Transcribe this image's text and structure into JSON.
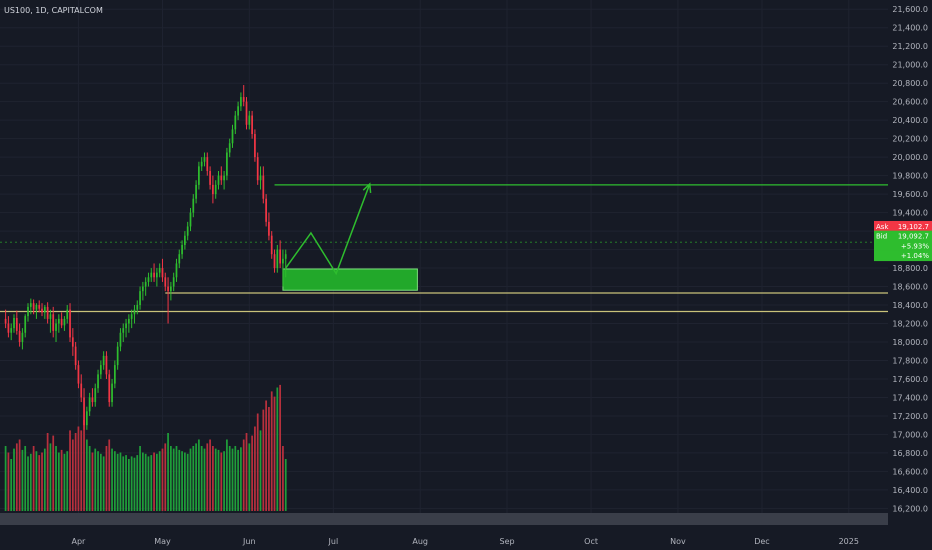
{
  "symbol_label": "US100, 1D, CAPITALCOM",
  "chart_data": {
    "type": "candlestick",
    "y_ticks": [
      16200,
      16400,
      16600,
      16800,
      17000,
      17200,
      17400,
      17600,
      17800,
      18000,
      18200,
      18400,
      18600,
      18800,
      19000,
      19200,
      19400,
      19600,
      19800,
      20000,
      20200,
      20400,
      20600,
      20800,
      21000,
      21200,
      21400,
      21600
    ],
    "y_tick_labels": [
      "16,200.0",
      "16,400.0",
      "16,600.0",
      "16,800.0",
      "17,000.0",
      "17,200.0",
      "17,400.0",
      "17,600.0",
      "17,800.0",
      "18,000.0",
      "18,200.0",
      "18,400.0",
      "18,600.0",
      "18,800.0",
      "19,000.0",
      "19,200.0",
      "19,400.0",
      "19,600.0",
      "19,800.0",
      "20,000.0",
      "20,200.0",
      "20,400.0",
      "20,600.0",
      "20,800.0",
      "21,000.0",
      "21,200.0",
      "21,400.0",
      "21,600.0"
    ],
    "ylim": [
      16150,
      21700
    ],
    "x_ticks": [
      "Apr",
      "May",
      "Jun",
      "Jul",
      "Aug",
      "Sep",
      "Oct",
      "Nov",
      "Dec",
      "2025"
    ],
    "x_tick_days": [
      -4,
      26,
      57,
      87,
      118,
      149,
      179,
      210,
      240,
      271
    ],
    "xlim": [
      -32,
      285
    ],
    "candles": [
      [
        -30,
        18250,
        18350,
        18150,
        18200
      ],
      [
        -29,
        18200,
        18280,
        18050,
        18100
      ],
      [
        -28,
        18100,
        18200,
        18020,
        18150
      ],
      [
        -27,
        18150,
        18300,
        18100,
        18260
      ],
      [
        -26,
        18260,
        18340,
        18080,
        18120
      ],
      [
        -25,
        18120,
        18200,
        17950,
        18000
      ],
      [
        -24,
        18000,
        18150,
        17920,
        18100
      ],
      [
        -23,
        18100,
        18300,
        18050,
        18280
      ],
      [
        -22,
        18280,
        18420,
        18220,
        18380
      ],
      [
        -21,
        18380,
        18470,
        18300,
        18420
      ],
      [
        -20,
        18420,
        18460,
        18300,
        18350
      ],
      [
        -19,
        18350,
        18420,
        18250,
        18400
      ],
      [
        -18,
        18400,
        18450,
        18320,
        18360
      ],
      [
        -17,
        18360,
        18420,
        18280,
        18320
      ],
      [
        -16,
        18320,
        18400,
        18250,
        18380
      ],
      [
        -15,
        18380,
        18430,
        18200,
        18250
      ],
      [
        -14,
        18250,
        18350,
        18100,
        18300
      ],
      [
        -13,
        18300,
        18380,
        18050,
        18120
      ],
      [
        -12,
        18120,
        18250,
        18000,
        18200
      ],
      [
        -11,
        18200,
        18300,
        18100,
        18250
      ],
      [
        -10,
        18250,
        18320,
        18150,
        18180
      ],
      [
        -9,
        18180,
        18280,
        18120,
        18250
      ],
      [
        -8,
        18250,
        18400,
        18200,
        18350
      ],
      [
        -7,
        18350,
        18420,
        18000,
        18050
      ],
      [
        -6,
        18050,
        18150,
        17850,
        17950
      ],
      [
        -5,
        17950,
        18000,
        17700,
        17750
      ],
      [
        -4,
        17750,
        17800,
        17500,
        17550
      ],
      [
        -3,
        17550,
        17650,
        17350,
        17400
      ],
      [
        -2,
        17400,
        17500,
        17050,
        17100
      ],
      [
        -1,
        17100,
        17300,
        17050,
        17250
      ],
      [
        0,
        17250,
        17450,
        17200,
        17400
      ],
      [
        1,
        17400,
        17500,
        17300,
        17350
      ],
      [
        2,
        17350,
        17550,
        17300,
        17500
      ],
      [
        3,
        17500,
        17700,
        17450,
        17650
      ],
      [
        4,
        17650,
        17800,
        17600,
        17750
      ],
      [
        5,
        17750,
        17900,
        17700,
        17850
      ],
      [
        6,
        17850,
        17900,
        17600,
        17650
      ],
      [
        7,
        17650,
        17700,
        17300,
        17350
      ],
      [
        8,
        17350,
        17600,
        17300,
        17550
      ],
      [
        9,
        17550,
        17800,
        17500,
        17750
      ],
      [
        10,
        17750,
        18000,
        17700,
        17950
      ],
      [
        11,
        17950,
        18150,
        17900,
        18100
      ],
      [
        12,
        18100,
        18200,
        18000,
        18150
      ],
      [
        13,
        18150,
        18250,
        18050,
        18200
      ],
      [
        14,
        18200,
        18300,
        18100,
        18250
      ],
      [
        15,
        18250,
        18350,
        18150,
        18300
      ],
      [
        16,
        18300,
        18400,
        18200,
        18350
      ],
      [
        17,
        18350,
        18450,
        18300,
        18400
      ],
      [
        18,
        18400,
        18600,
        18350,
        18550
      ],
      [
        19,
        18550,
        18650,
        18450,
        18600
      ],
      [
        20,
        18600,
        18700,
        18500,
        18650
      ],
      [
        21,
        18650,
        18750,
        18600,
        18700
      ],
      [
        22,
        18700,
        18800,
        18650,
        18750
      ],
      [
        23,
        18750,
        18850,
        18650,
        18700
      ],
      [
        24,
        18700,
        18800,
        18600,
        18750
      ],
      [
        25,
        18750,
        18850,
        18700,
        18800
      ],
      [
        26,
        18800,
        18900,
        18650,
        18700
      ],
      [
        27,
        18700,
        18750,
        18550,
        18600
      ],
      [
        28,
        18600,
        18700,
        18200,
        18550
      ],
      [
        29,
        18550,
        18650,
        18450,
        18600
      ],
      [
        30,
        18600,
        18750,
        18550,
        18700
      ],
      [
        31,
        18700,
        18900,
        18650,
        18850
      ],
      [
        32,
        18850,
        19000,
        18800,
        18950
      ],
      [
        33,
        18950,
        19100,
        18900,
        19050
      ],
      [
        34,
        19050,
        19200,
        19000,
        19150
      ],
      [
        35,
        19150,
        19300,
        19100,
        19250
      ],
      [
        36,
        19250,
        19450,
        19200,
        19400
      ],
      [
        37,
        19400,
        19600,
        19350,
        19550
      ],
      [
        38,
        19550,
        19750,
        19500,
        19700
      ],
      [
        39,
        19700,
        19950,
        19650,
        19900
      ],
      [
        40,
        19900,
        20000,
        19850,
        19950
      ],
      [
        41,
        19950,
        20050,
        19900,
        20000
      ],
      [
        42,
        20000,
        20050,
        19800,
        19850
      ],
      [
        43,
        19850,
        19900,
        19650,
        19700
      ],
      [
        44,
        19700,
        19800,
        19500,
        19600
      ],
      [
        45,
        19600,
        19750,
        19550,
        19700
      ],
      [
        46,
        19700,
        19850,
        19650,
        19800
      ],
      [
        47,
        19800,
        19900,
        19700,
        19750
      ],
      [
        48,
        19750,
        19850,
        19650,
        19800
      ],
      [
        49,
        19800,
        20100,
        19750,
        20050
      ],
      [
        50,
        20050,
        20200,
        20000,
        20150
      ],
      [
        51,
        20150,
        20350,
        20100,
        20300
      ],
      [
        52,
        20300,
        20500,
        20250,
        20450
      ],
      [
        53,
        20450,
        20600,
        20400,
        20550
      ],
      [
        54,
        20550,
        20700,
        20500,
        20650
      ],
      [
        55,
        20650,
        20780,
        20550,
        20600
      ],
      [
        56,
        20600,
        20650,
        20300,
        20350
      ],
      [
        57,
        20350,
        20500,
        20300,
        20450
      ],
      [
        58,
        20450,
        20500,
        20200,
        20250
      ],
      [
        59,
        20250,
        20300,
        19950,
        20000
      ],
      [
        60,
        20000,
        20050,
        19700,
        19750
      ],
      [
        61,
        19750,
        19900,
        19650,
        19800
      ],
      [
        62,
        19800,
        19900,
        19500,
        19550
      ],
      [
        63,
        19550,
        19600,
        19250,
        19300
      ],
      [
        64,
        19300,
        19400,
        19100,
        19150
      ],
      [
        65,
        19150,
        19200,
        18900,
        18950
      ],
      [
        66,
        18950,
        19000,
        18750,
        18800
      ],
      [
        67,
        18800,
        19050,
        18750,
        19000
      ],
      [
        68,
        19000,
        19100,
        18800,
        18850
      ],
      [
        69,
        18850,
        19000,
        18600,
        18900
      ],
      [
        70,
        18900,
        19000,
        18700,
        18950
      ]
    ],
    "volume_bars": [
      [
        -30,
        0.5,
        "up"
      ],
      [
        -29,
        0.45,
        "dn"
      ],
      [
        -28,
        0.4,
        "up"
      ],
      [
        -27,
        0.48,
        "up"
      ],
      [
        -26,
        0.52,
        "dn"
      ],
      [
        -25,
        0.55,
        "dn"
      ],
      [
        -24,
        0.47,
        "up"
      ],
      [
        -23,
        0.5,
        "up"
      ],
      [
        -22,
        0.42,
        "up"
      ],
      [
        -21,
        0.44,
        "up"
      ],
      [
        -20,
        0.5,
        "dn"
      ],
      [
        -19,
        0.46,
        "up"
      ],
      [
        -18,
        0.43,
        "dn"
      ],
      [
        -17,
        0.45,
        "dn"
      ],
      [
        -16,
        0.48,
        "up"
      ],
      [
        -15,
        0.6,
        "dn"
      ],
      [
        -14,
        0.52,
        "up"
      ],
      [
        -13,
        0.58,
        "dn"
      ],
      [
        -12,
        0.5,
        "up"
      ],
      [
        -11,
        0.45,
        "up"
      ],
      [
        -10,
        0.47,
        "dn"
      ],
      [
        -9,
        0.44,
        "up"
      ],
      [
        -8,
        0.46,
        "up"
      ],
      [
        -7,
        0.62,
        "dn"
      ],
      [
        -6,
        0.55,
        "dn"
      ],
      [
        -5,
        0.6,
        "dn"
      ],
      [
        -4,
        0.65,
        "dn"
      ],
      [
        -3,
        0.62,
        "dn"
      ],
      [
        -2,
        0.7,
        "dn"
      ],
      [
        -1,
        0.55,
        "up"
      ],
      [
        0,
        0.5,
        "up"
      ],
      [
        1,
        0.45,
        "dn"
      ],
      [
        2,
        0.48,
        "up"
      ],
      [
        3,
        0.46,
        "up"
      ],
      [
        4,
        0.44,
        "up"
      ],
      [
        5,
        0.42,
        "up"
      ],
      [
        6,
        0.5,
        "dn"
      ],
      [
        7,
        0.55,
        "dn"
      ],
      [
        8,
        0.48,
        "up"
      ],
      [
        9,
        0.46,
        "up"
      ],
      [
        10,
        0.44,
        "up"
      ],
      [
        11,
        0.45,
        "up"
      ],
      [
        12,
        0.42,
        "up"
      ],
      [
        13,
        0.43,
        "up"
      ],
      [
        14,
        0.4,
        "up"
      ],
      [
        15,
        0.42,
        "up"
      ],
      [
        16,
        0.41,
        "up"
      ],
      [
        17,
        0.43,
        "up"
      ],
      [
        18,
        0.5,
        "up"
      ],
      [
        19,
        0.45,
        "up"
      ],
      [
        20,
        0.44,
        "up"
      ],
      [
        21,
        0.42,
        "up"
      ],
      [
        22,
        0.43,
        "up"
      ],
      [
        23,
        0.45,
        "dn"
      ],
      [
        24,
        0.44,
        "up"
      ],
      [
        25,
        0.46,
        "up"
      ],
      [
        26,
        0.48,
        "dn"
      ],
      [
        27,
        0.52,
        "dn"
      ],
      [
        28,
        0.6,
        "up"
      ],
      [
        29,
        0.5,
        "up"
      ],
      [
        30,
        0.48,
        "up"
      ],
      [
        31,
        0.5,
        "up"
      ],
      [
        32,
        0.47,
        "up"
      ],
      [
        33,
        0.46,
        "up"
      ],
      [
        34,
        0.45,
        "up"
      ],
      [
        35,
        0.44,
        "up"
      ],
      [
        36,
        0.48,
        "up"
      ],
      [
        37,
        0.5,
        "up"
      ],
      [
        38,
        0.52,
        "up"
      ],
      [
        39,
        0.55,
        "up"
      ],
      [
        40,
        0.5,
        "up"
      ],
      [
        41,
        0.48,
        "up"
      ],
      [
        42,
        0.52,
        "dn"
      ],
      [
        43,
        0.55,
        "dn"
      ],
      [
        44,
        0.5,
        "dn"
      ],
      [
        45,
        0.48,
        "up"
      ],
      [
        46,
        0.47,
        "up"
      ],
      [
        47,
        0.45,
        "dn"
      ],
      [
        48,
        0.46,
        "up"
      ],
      [
        49,
        0.55,
        "up"
      ],
      [
        50,
        0.5,
        "up"
      ],
      [
        51,
        0.48,
        "up"
      ],
      [
        52,
        0.5,
        "up"
      ],
      [
        53,
        0.47,
        "up"
      ],
      [
        54,
        0.49,
        "up"
      ],
      [
        55,
        0.55,
        "dn"
      ],
      [
        56,
        0.6,
        "dn"
      ],
      [
        57,
        0.52,
        "up"
      ],
      [
        58,
        0.58,
        "dn"
      ],
      [
        59,
        0.65,
        "dn"
      ],
      [
        60,
        0.75,
        "dn"
      ],
      [
        61,
        0.62,
        "up"
      ],
      [
        62,
        0.78,
        "dn"
      ],
      [
        63,
        0.85,
        "dn"
      ],
      [
        64,
        0.8,
        "dn"
      ],
      [
        65,
        0.92,
        "dn"
      ],
      [
        66,
        0.88,
        "dn"
      ],
      [
        67,
        0.95,
        "up"
      ],
      [
        68,
        0.97,
        "dn"
      ],
      [
        69,
        0.5,
        "dn"
      ],
      [
        70,
        0.4,
        "up"
      ]
    ],
    "horizontal_lines": [
      {
        "price": 19700,
        "color": "#2ebd2e",
        "from_day": 66,
        "to_day": 285
      },
      {
        "price": 18530,
        "color": "#c9c27a",
        "from_day": 27,
        "to_day": 285
      },
      {
        "price": 18330,
        "color": "#c9c27a",
        "from_day": -32,
        "to_day": 285
      }
    ],
    "dotted_price_line": 19080,
    "zone": {
      "from_day": 69,
      "to_day": 117,
      "top": 18790,
      "bottom": 18560
    },
    "projection_path": [
      [
        70,
        18800
      ],
      [
        79,
        19180
      ],
      [
        88,
        18740
      ],
      [
        100,
        19710
      ]
    ],
    "price_tags": [
      {
        "label": "Ask",
        "value": "19,102.7",
        "bg": "#f23645",
        "price": 19250
      },
      {
        "label": "Bid",
        "value": "19,092.7",
        "bg": "#2ebd2e",
        "price": 19145
      },
      {
        "label": "",
        "value": "+5.93%",
        "bg": "#2ebd2e",
        "price": 19040
      },
      {
        "label": "",
        "value": "+1.04%",
        "bg": "#2ebd2e",
        "price": 18935
      }
    ]
  },
  "colors": {
    "up": "#2ebd2e",
    "down": "#f23645",
    "vol_up": "#1f9e3a",
    "vol_down": "#b7303d",
    "background": "#161a25"
  }
}
